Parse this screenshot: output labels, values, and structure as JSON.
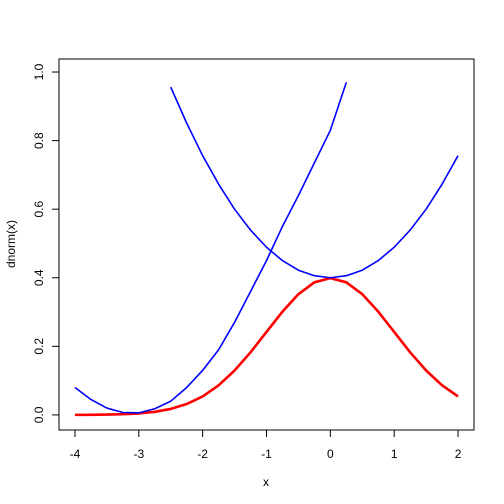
{
  "chart_data": {
    "type": "line",
    "xlabel": "x",
    "ylabel": "dnorm(x)",
    "x": [
      -4,
      -3.75,
      -3.5,
      -3.25,
      -3,
      -2.75,
      -2.5,
      -2.25,
      -2,
      -1.75,
      -1.5,
      -1.25,
      -1,
      -0.75,
      -0.5,
      -0.25,
      0,
      0.25,
      0.5,
      0.75,
      1,
      1.25,
      1.5,
      1.75,
      2
    ],
    "series": [
      {
        "color": "#ff0000",
        "values": [
          0.0001,
          0.0004,
          0.0009,
          0.002,
          0.0044,
          0.0091,
          0.0175,
          0.0317,
          0.054,
          0.0863,
          0.1295,
          0.1826,
          0.242,
          0.3011,
          0.3521,
          0.3867,
          0.3989,
          0.3867,
          0.3521,
          0.3011,
          0.242,
          0.1826,
          0.1295,
          0.0863,
          0.054
        ]
      },
      {
        "color": "#0000ff",
        "values": [
          null,
          null,
          null,
          null,
          null,
          null,
          0.956,
          0.851,
          0.756,
          0.673,
          0.6,
          0.539,
          0.489,
          0.45,
          0.422,
          0.406,
          0.4,
          0.406,
          0.422,
          0.45,
          0.489,
          0.539,
          0.6,
          0.673,
          0.756
        ]
      },
      {
        "color": "#0000ff",
        "values": [
          0.08,
          0.045,
          0.02,
          0.007,
          0.006,
          0.018,
          0.04,
          0.08,
          0.13,
          0.19,
          0.27,
          0.36,
          0.45,
          0.55,
          0.64,
          0.735,
          0.83,
          0.97,
          null,
          null,
          null,
          null,
          null,
          null,
          null
        ]
      }
    ],
    "xlim": [
      -4.25,
      2.25
    ],
    "xticks": [
      -4,
      -3,
      -2,
      -1,
      0,
      1,
      2
    ],
    "ylim": [
      -0.044,
      1.038
    ],
    "yticks": [
      {
        "value": 0,
        "label": "0.0"
      },
      {
        "value": 0.2,
        "label": "0.2"
      },
      {
        "value": 0.4,
        "label": "0.4"
      },
      {
        "value": 0.6,
        "label": "0.6"
      },
      {
        "value": 0.8,
        "label": "0.8"
      },
      {
        "value": 1,
        "label": "1.0"
      }
    ]
  }
}
